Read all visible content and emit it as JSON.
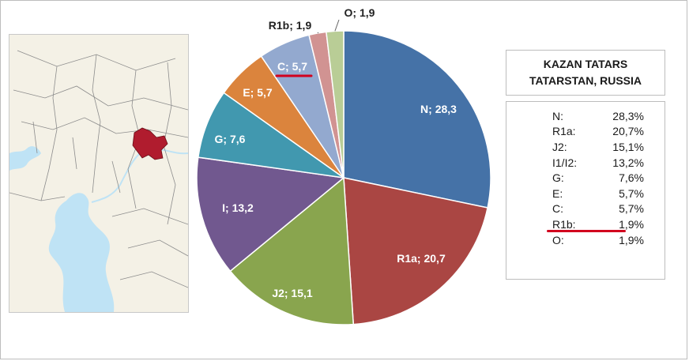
{
  "chart_data": {
    "type": "pie",
    "title": "KAZAN TATARS TATARSTAN, RUSSIA",
    "categories": [
      "N",
      "R1a",
      "J2",
      "I",
      "G",
      "E",
      "C",
      "R1b",
      "O"
    ],
    "values": [
      28.3,
      20.7,
      15.1,
      13.2,
      7.6,
      5.7,
      5.7,
      1.9,
      1.9
    ],
    "slice_labels": [
      "N; 28,3",
      "R1a; 20,7",
      "J2; 15,1",
      "I; 13,2",
      "G; 7,6",
      "E; 5,7",
      "C; 5,7",
      "R1b; 1,9",
      "O; 1,9"
    ],
    "colors": [
      "#4572A7",
      "#AA4643",
      "#89A54E",
      "#71588F",
      "#4198AF",
      "#DB843D",
      "#93A9CF",
      "#D19392",
      "#B9CD96"
    ],
    "highlight": "C",
    "highlight_color": "#d2001e"
  },
  "legend": {
    "title_line1": "KAZAN TATARS",
    "title_line2": "TATARSTAN, RUSSIA",
    "rows": [
      {
        "key": "N:",
        "value": "28,3%"
      },
      {
        "key": "R1a:",
        "value": "20,7%"
      },
      {
        "key": "J2:",
        "value": "15,1%"
      },
      {
        "key": "I1/I2:",
        "value": "13,2%"
      },
      {
        "key": "G:",
        "value": "7,6%"
      },
      {
        "key": "E:",
        "value": "5,7%"
      },
      {
        "key": "C:",
        "value": "5,7%"
      },
      {
        "key": "R1b:",
        "value": "1,9%"
      },
      {
        "key": "O:",
        "value": "1,9%"
      }
    ]
  },
  "map": {
    "land_color": "#f4f1e6",
    "water_color": "#bfe3f5",
    "border_color": "#8c8c8c",
    "highlight_color": "#b01c2e"
  }
}
